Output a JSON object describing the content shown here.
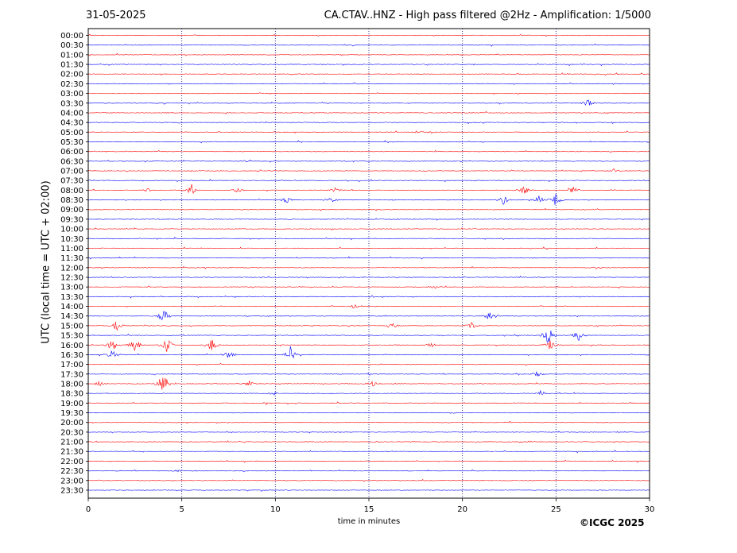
{
  "header": {
    "date": "31-05-2025",
    "title": "CA.CTAV..HNZ - High pass filtered @2Hz - Amplification: 1/5000"
  },
  "footer": {
    "copyright": "©ICGC 2025"
  },
  "colors": {
    "trace_a": "#ff0000",
    "trace_b": "#0000ff",
    "grid": "#000080",
    "axis": "#000000"
  },
  "chart_data": {
    "type": "line",
    "title": "CA.CTAV..HNZ - High pass filtered @2Hz - Amplification: 1/5000",
    "xlabel": "time in minutes",
    "ylabel": "UTC (local time = UTC + 02:00)",
    "xlim": [
      0,
      30
    ],
    "x_ticks": [
      0,
      5,
      10,
      15,
      20,
      25,
      30
    ],
    "x_tick_labels": [
      "0",
      "5",
      "10",
      "15",
      "20",
      "25",
      "30"
    ],
    "vertical_gridlines_at": [
      5,
      10,
      15,
      20,
      25
    ],
    "grid": "dotted vertical",
    "row_labels": [
      "00:00",
      "00:30",
      "01:00",
      "01:30",
      "02:00",
      "02:30",
      "03:00",
      "03:30",
      "04:00",
      "04:30",
      "05:00",
      "05:30",
      "06:00",
      "06:30",
      "07:00",
      "07:30",
      "08:00",
      "08:30",
      "09:00",
      "09:30",
      "10:00",
      "10:30",
      "11:00",
      "11:30",
      "12:00",
      "12:30",
      "13:00",
      "13:30",
      "14:00",
      "14:30",
      "15:00",
      "15:30",
      "16:00",
      "16:30",
      "17:00",
      "17:30",
      "18:00",
      "18:30",
      "19:00",
      "19:30",
      "20:00",
      "20:30",
      "21:00",
      "21:30",
      "22:00",
      "22:30",
      "23:00",
      "23:30"
    ],
    "row_colors": "alternating red (even rows) / blue (odd rows)",
    "events": [
      {
        "row": "03:30",
        "minute": 26.7,
        "amp": 0.9
      },
      {
        "row": "05:00",
        "minute": 17.6,
        "amp": 0.3
      },
      {
        "row": "05:00",
        "minute": 18.4,
        "amp": 0.3
      },
      {
        "row": "06:30",
        "minute": 8.5,
        "amp": 0.3
      },
      {
        "row": "07:00",
        "minute": 28.1,
        "amp": 0.4
      },
      {
        "row": "08:00",
        "minute": 3.2,
        "amp": 0.4
      },
      {
        "row": "08:00",
        "minute": 5.5,
        "amp": 1.3
      },
      {
        "row": "08:00",
        "minute": 8.0,
        "amp": 0.5
      },
      {
        "row": "08:00",
        "minute": 13.2,
        "amp": 0.5
      },
      {
        "row": "08:00",
        "minute": 23.3,
        "amp": 1.0
      },
      {
        "row": "08:00",
        "minute": 25.9,
        "amp": 0.8
      },
      {
        "row": "08:30",
        "minute": 10.6,
        "amp": 0.8
      },
      {
        "row": "08:30",
        "minute": 12.9,
        "amp": 0.9
      },
      {
        "row": "08:30",
        "minute": 22.2,
        "amp": 1.0
      },
      {
        "row": "08:30",
        "minute": 24.1,
        "amp": 1.0
      },
      {
        "row": "08:30",
        "minute": 25.0,
        "amp": 1.5
      },
      {
        "row": "12:00",
        "minute": 27.2,
        "amp": 0.3
      },
      {
        "row": "13:00",
        "minute": 18.5,
        "amp": 0.4
      },
      {
        "row": "14:00",
        "minute": 14.2,
        "amp": 0.5
      },
      {
        "row": "14:30",
        "minute": 4.0,
        "amp": 2.0
      },
      {
        "row": "14:30",
        "minute": 21.5,
        "amp": 1.5
      },
      {
        "row": "15:00",
        "minute": 1.5,
        "amp": 1.3
      },
      {
        "row": "15:00",
        "minute": 16.3,
        "amp": 0.8
      },
      {
        "row": "15:00",
        "minute": 20.5,
        "amp": 0.9
      },
      {
        "row": "15:30",
        "minute": 24.6,
        "amp": 2.0
      },
      {
        "row": "15:30",
        "minute": 26.2,
        "amp": 1.3
      },
      {
        "row": "16:00",
        "minute": 1.3,
        "amp": 1.3
      },
      {
        "row": "16:00",
        "minute": 2.5,
        "amp": 2.2
      },
      {
        "row": "16:00",
        "minute": 4.2,
        "amp": 2.0
      },
      {
        "row": "16:00",
        "minute": 6.6,
        "amp": 1.6
      },
      {
        "row": "16:00",
        "minute": 18.3,
        "amp": 0.6
      },
      {
        "row": "16:00",
        "minute": 24.7,
        "amp": 1.2
      },
      {
        "row": "16:30",
        "minute": 1.3,
        "amp": 1.2
      },
      {
        "row": "16:30",
        "minute": 7.5,
        "amp": 1.0
      },
      {
        "row": "16:30",
        "minute": 10.8,
        "amp": 2.0
      },
      {
        "row": "17:30",
        "minute": 24.0,
        "amp": 0.6
      },
      {
        "row": "18:00",
        "minute": 0.6,
        "amp": 0.5
      },
      {
        "row": "18:00",
        "minute": 4.0,
        "amp": 3.0
      },
      {
        "row": "18:00",
        "minute": 8.6,
        "amp": 0.6
      },
      {
        "row": "18:00",
        "minute": 15.2,
        "amp": 0.6
      },
      {
        "row": "18:30",
        "minute": 9.9,
        "amp": 0.4
      },
      {
        "row": "18:30",
        "minute": 24.2,
        "amp": 0.4
      },
      {
        "row": "19:00",
        "minute": 9.6,
        "amp": 0.3
      },
      {
        "row": "22:30",
        "minute": 4.7,
        "amp": 0.3
      }
    ]
  }
}
